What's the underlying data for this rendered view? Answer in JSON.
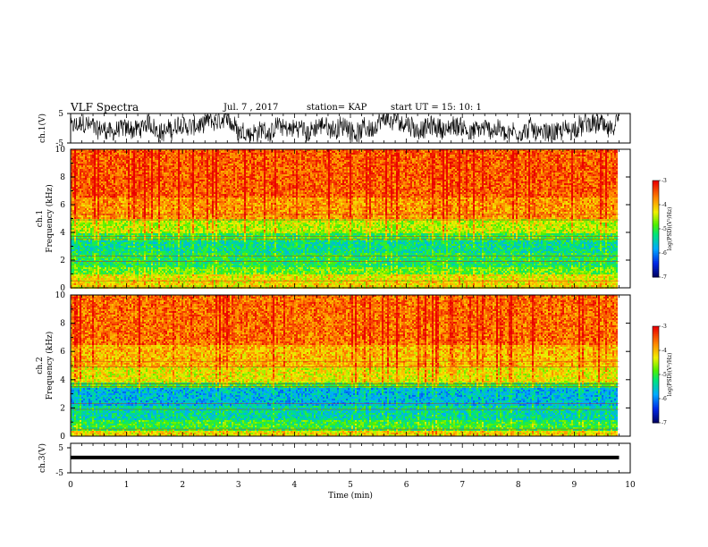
{
  "header": {
    "title": "VLF Spectra",
    "date": "Jul. 7 , 2017",
    "station": "station= KAP",
    "start": "start UT =  15: 10: 1"
  },
  "chart_data": [
    {
      "type": "line",
      "ylabel": "ch.1(V)",
      "ylim": [
        -5,
        5
      ],
      "yticks": [
        "5",
        "-5"
      ],
      "x_range_min": [
        0,
        9.8
      ],
      "description_of_signal": "noisy waveform around 0 V"
    },
    {
      "type": "heatmap",
      "ylabel": "ch.1\nFrequency (kHz)",
      "ylabel_lines": [
        "ch.1",
        "Frequency (kHz)"
      ],
      "ylim": [
        0,
        10
      ],
      "yticks": [
        "0",
        "2",
        "4",
        "6",
        "8",
        "10"
      ],
      "xlim": [
        0,
        9.8
      ],
      "bands_khz": [
        {
          "from": 0.0,
          "to": 0.5,
          "level": -4.2
        },
        {
          "from": 0.5,
          "to": 1.0,
          "level": -4.3
        },
        {
          "from": 1.0,
          "to": 1.6,
          "level": -4.8
        },
        {
          "from": 1.6,
          "to": 2.6,
          "level": -5.1
        },
        {
          "from": 2.6,
          "to": 3.4,
          "level": -5.3
        },
        {
          "from": 3.4,
          "to": 4.0,
          "level": -5.0
        },
        {
          "from": 4.0,
          "to": 5.0,
          "level": -4.5
        },
        {
          "from": 5.0,
          "to": 6.5,
          "level": -3.8
        },
        {
          "from": 6.5,
          "to": 10.0,
          "level": -3.5
        }
      ],
      "colorbar": {
        "label": "log(PSD)(V²/Hz)",
        "ticks": [
          "-3",
          "-4",
          "-5",
          "-6",
          "-7"
        ],
        "range": [
          -7,
          -3
        ]
      }
    },
    {
      "type": "heatmap",
      "ylabel": "ch.2\nFrequency (kHz)",
      "ylabel_lines": [
        "ch.2",
        "Frequency (kHz)"
      ],
      "ylim": [
        0,
        10
      ],
      "yticks": [
        "0",
        "2",
        "4",
        "6",
        "8",
        "10"
      ],
      "xlim": [
        0,
        9.8
      ],
      "bands_khz": [
        {
          "from": 0.0,
          "to": 0.4,
          "level": -4.2
        },
        {
          "from": 0.4,
          "to": 1.2,
          "level": -5.0
        },
        {
          "from": 1.2,
          "to": 2.2,
          "level": -5.4
        },
        {
          "from": 2.2,
          "to": 3.4,
          "level": -5.7
        },
        {
          "from": 3.4,
          "to": 3.8,
          "level": -5.0
        },
        {
          "from": 3.8,
          "to": 5.0,
          "level": -4.3
        },
        {
          "from": 5.0,
          "to": 6.5,
          "level": -4.0
        },
        {
          "from": 6.5,
          "to": 10.0,
          "level": -3.6
        }
      ],
      "colorbar": {
        "label": "log(PSD)(V²/Hz)",
        "ticks": [
          "-3",
          "-4",
          "-5",
          "-6",
          "-7"
        ],
        "range": [
          -7,
          -3
        ]
      }
    },
    {
      "type": "line",
      "ylabel": "ch.3(V)",
      "ylim": [
        -5,
        5
      ],
      "yticks": [
        "5",
        "-5"
      ],
      "constant_value": 0,
      "xlabel": "Time (min)",
      "xlim": [
        0,
        10
      ],
      "xticks": [
        "0",
        "1",
        "2",
        "3",
        "4",
        "5",
        "6",
        "7",
        "8",
        "9",
        "10"
      ]
    }
  ],
  "colors": {
    "axis": "#000000",
    "trace": "#000000"
  }
}
